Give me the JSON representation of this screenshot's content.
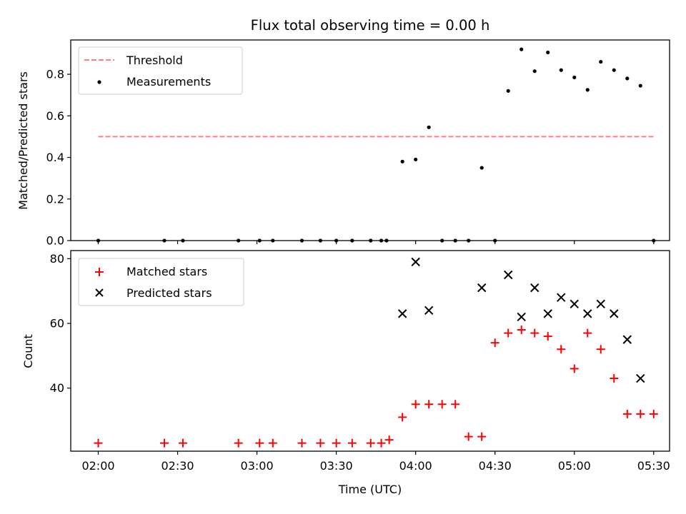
{
  "chart_data": {
    "title": "Flux total observing time = 0.00 h",
    "xlabel": "Time (UTC)",
    "x_ticks": [
      "02:00",
      "02:30",
      "03:00",
      "03:30",
      "04:00",
      "04:30",
      "05:00",
      "05:30"
    ],
    "x_tick_minutes": [
      120,
      150,
      180,
      210,
      240,
      270,
      300,
      330
    ],
    "xlim_minutes": [
      109.6,
      336.0
    ],
    "panels": [
      {
        "type": "scatter",
        "ylabel": "Matched/Predicted stars",
        "ylim": [
          0,
          0.965
        ],
        "y_ticks": [
          0.0,
          0.2,
          0.4,
          0.6,
          0.8
        ],
        "y_tick_labels": [
          "0.0",
          "0.2",
          "0.4",
          "0.6",
          "0.8"
        ],
        "legend": [
          "Threshold",
          "Measurements"
        ],
        "legend_position": "upper-left",
        "threshold": {
          "name": "Threshold",
          "value": 0.5,
          "x_range": [
            120,
            330
          ],
          "color": "#ff7f7f",
          "style": "dashed"
        },
        "series": [
          {
            "name": "Measurements",
            "marker": "dot",
            "color": "#000000",
            "x": [
              120,
              145,
              152,
              173,
              181,
              186,
              197,
              204,
              210,
              216,
              223,
              227,
              229,
              235,
              240,
              245,
              250,
              255,
              260,
              265,
              270,
              275,
              280,
              285,
              290,
              295,
              300,
              305,
              310,
              315,
              320,
              325,
              330
            ],
            "y": [
              0,
              0,
              0,
              0,
              0,
              0,
              0,
              0,
              0,
              0,
              0,
              0,
              0,
              0.38,
              0.39,
              0.545,
              0,
              0,
              0,
              0.35,
              0,
              0.72,
              0.92,
              0.815,
              0.905,
              0.82,
              0.785,
              0.725,
              0.86,
              0.82,
              0.78,
              0.745,
              0
            ]
          }
        ]
      },
      {
        "type": "scatter",
        "ylabel": "Count",
        "ylim": [
          20.5,
          82.5
        ],
        "y_ticks": [
          40,
          60,
          80
        ],
        "y_tick_labels": [
          "40",
          "60",
          "80"
        ],
        "legend": [
          "Matched stars",
          "Predicted stars"
        ],
        "legend_position": "upper-left",
        "series": [
          {
            "name": "Matched stars",
            "marker": "plus",
            "color": "#ff0000",
            "x": [
              120,
              145,
              152,
              173,
              181,
              186,
              197,
              204,
              210,
              216,
              223,
              227,
              230,
              235,
              240,
              245,
              250,
              255,
              260,
              265,
              270,
              275,
              280,
              285,
              290,
              295,
              300,
              305,
              310,
              315,
              320,
              325,
              330
            ],
            "y": [
              23,
              23,
              23,
              23,
              23,
              23,
              23,
              23,
              23,
              23,
              23,
              23,
              24,
              31,
              35,
              35,
              35,
              35,
              25,
              25,
              54,
              57,
              58,
              57,
              56,
              52,
              46,
              57,
              52,
              43,
              32,
              32,
              32
            ]
          },
          {
            "name": "Predicted stars",
            "marker": "x",
            "color": "#000000",
            "x": [
              235,
              240,
              245,
              265,
              275,
              280,
              285,
              290,
              295,
              300,
              305,
              310,
              315,
              320,
              325
            ],
            "y": [
              63,
              79,
              64,
              71,
              75,
              62,
              71,
              63,
              68,
              66,
              63,
              66,
              63,
              55,
              43
            ]
          }
        ]
      }
    ]
  }
}
